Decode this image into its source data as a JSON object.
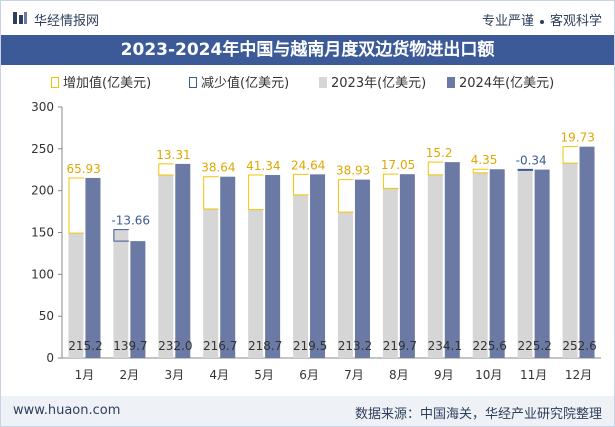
{
  "header": {
    "brand": "华经情报网",
    "tagline_left": "专业严谨",
    "tagline_right": "客观科学"
  },
  "title": "2023-2024年中国与越南月度双边货物进出口额",
  "legend": {
    "increase": "增加值(亿美元)",
    "decrease": "减少值(亿美元)",
    "y2023": "2023年(亿美元)",
    "y2024": "2024年(亿美元)"
  },
  "colors": {
    "bar2023": "#d6d6d6",
    "bar2024": "#6b7aa5",
    "increase": "#f5c400",
    "decrease": "#3c5a98",
    "header_band": "#3c5a98"
  },
  "chart_data": {
    "type": "bar",
    "categories": [
      "1月",
      "2月",
      "3月",
      "4月",
      "5月",
      "6月",
      "7月",
      "8月",
      "9月",
      "10月",
      "11月",
      "12月"
    ],
    "series": [
      {
        "name": "2023年(亿美元)",
        "values": [
          149.3,
          153.4,
          218.7,
          178.1,
          177.4,
          194.9,
          174.3,
          202.7,
          218.9,
          221.3,
          225.5,
          232.9
        ]
      },
      {
        "name": "2024年(亿美元)",
        "values": [
          215.2,
          139.7,
          232.0,
          216.7,
          218.7,
          219.5,
          213.2,
          219.7,
          234.1,
          225.6,
          225.2,
          252.6
        ]
      }
    ],
    "change": {
      "values": [
        65.93,
        -13.66,
        13.31,
        38.64,
        41.34,
        24.64,
        38.93,
        17.05,
        15.2,
        4.35,
        -0.34,
        19.73
      ],
      "labels": [
        "65.93",
        "-13.66",
        "13.31",
        "38.64",
        "41.34",
        "24.64",
        "38.93",
        "17.05",
        "15.2",
        "4.35",
        "-0.34",
        "19.73"
      ]
    },
    "bar_labels_2024": [
      "215.2",
      "139.7",
      "232.0",
      "216.7",
      "218.7",
      "219.5",
      "213.2",
      "219.7",
      "234.1",
      "225.6",
      "225.2",
      "252.6"
    ],
    "y_ticks": [
      "0",
      "50",
      "100",
      "150",
      "200",
      "250",
      "300"
    ],
    "ylim": [
      0,
      300
    ],
    "grid": false
  },
  "footer": {
    "site": "www.huaon.com",
    "source": "数据来源：中国海关，华经产业研究院整理"
  }
}
